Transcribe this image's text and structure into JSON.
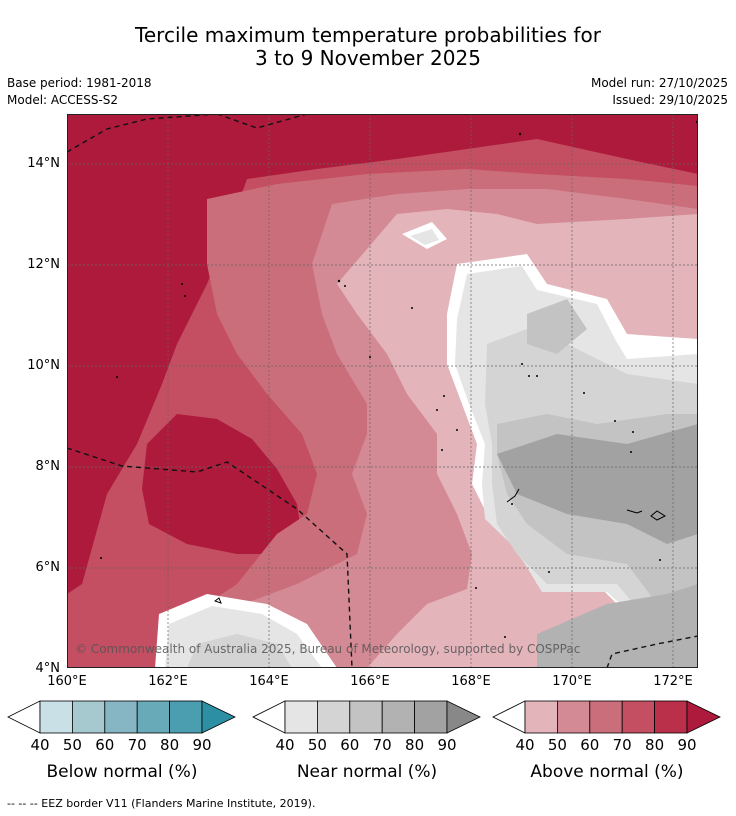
{
  "title": {
    "line1": "Tercile maximum temperature probabilities for",
    "line2": "3 to 9 November 2025"
  },
  "info": {
    "base_period": "Base period: 1981-2018",
    "model": "Model: ACCESS-S2",
    "model_run": "Model run: 27/10/2025",
    "issued": "Issued: 29/10/2025"
  },
  "map": {
    "lat_labels": [
      "14°N",
      "12°N",
      "10°N",
      "8°N",
      "6°N",
      "4°N"
    ],
    "lon_labels": [
      "160°E",
      "162°E",
      "164°E",
      "166°E",
      "168°E",
      "170°E",
      "172°E"
    ],
    "lat_range": [
      4,
      15
    ],
    "lon_range": [
      160,
      172.5
    ],
    "copyright": "© Commonwealth of Australia 2025, Bureau of Meteorology, supported by COSPPac"
  },
  "legend": {
    "below": {
      "label": "Below normal (%)",
      "ticks": [
        "40",
        "50",
        "60",
        "70",
        "80",
        "90"
      ],
      "colors": [
        "#ffffff",
        "#c9e0e6",
        "#a6c9d0",
        "#86b6c3",
        "#69aab9",
        "#4a9eb0",
        "#2d8fa3"
      ]
    },
    "near": {
      "label": "Near normal (%)",
      "ticks": [
        "40",
        "50",
        "60",
        "70",
        "80",
        "90"
      ],
      "colors": [
        "#ffffff",
        "#e5e5e5",
        "#d4d4d4",
        "#c3c3c3",
        "#b2b2b2",
        "#a2a2a2",
        "#888888"
      ]
    },
    "above": {
      "label": "Above normal (%)",
      "ticks": [
        "40",
        "50",
        "60",
        "70",
        "80",
        "90"
      ],
      "colors": [
        "#ffffff",
        "#e4b4bb",
        "#d48a95",
        "#cb6e7b",
        "#c44e62",
        "#ba2f4a",
        "#ad1a3b"
      ]
    }
  },
  "footnote": "--  --  -- EEZ border V11 (Flanders Marine Institute, 2019)."
}
